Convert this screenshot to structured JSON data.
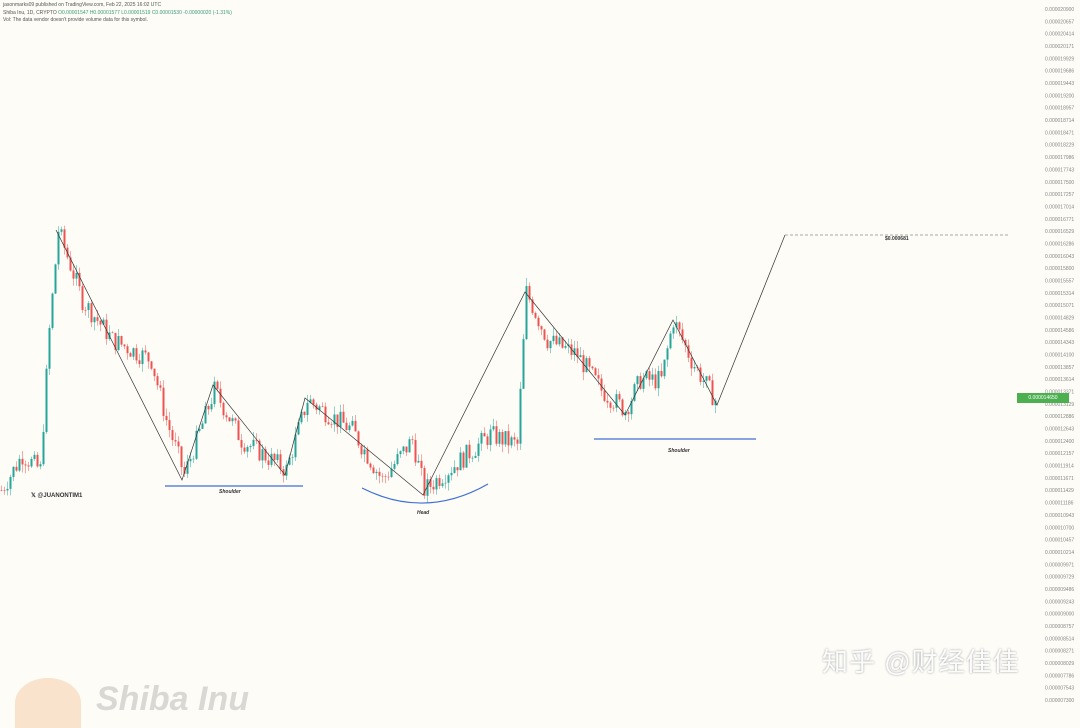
{
  "header": {
    "publisher": "jasonmarks09 published on TradingView.com, Feb 22, 2025 16:02 UTC",
    "symbol": "Shiba Inu, 1D, CRYPTO",
    "ohlc": "O0.00001547 H0.00001577 L0.00001519 C0.00001530 -0.00000020 (-1.31%)",
    "volume_note": "Vol: The data vendor doesn't provide volume data for this symbol."
  },
  "author_tag": "@JUANONTIM1",
  "current_price_label": "0.000014650",
  "target_label": "$0.000681",
  "annotations": {
    "left_shoulder": "Shoulder",
    "head": "Head",
    "right_shoulder": "Shoulder"
  },
  "watermark": {
    "zhihu": "知乎 @财经佳佳",
    "brand": "Shiba Inu"
  },
  "colors": {
    "up": "#26a69a",
    "down": "#ef5350",
    "neckline": "#3f6fd8",
    "price_tag": "#4caf50"
  },
  "chart_data": {
    "type": "candlestick",
    "title": "",
    "xlabel": "",
    "ylabel": "",
    "ylim": [
      7.3e-06,
      2.09e-05
    ],
    "grid": false,
    "trend_path": [
      [
        0,
        1.143e-05
      ],
      [
        7,
        1.212e-05
      ],
      [
        13,
        1.183e-05
      ],
      [
        16,
        1.458e-05
      ],
      [
        19,
        1.655e-05
      ],
      [
        27,
        1.517e-05
      ],
      [
        37,
        1.439e-05
      ],
      [
        50,
        1.399e-05
      ],
      [
        55,
        1.281e-05
      ],
      [
        61,
        1.173e-05
      ],
      [
        71,
        1.34e-05
      ],
      [
        80,
        1.242e-05
      ],
      [
        95,
        1.183e-05
      ],
      [
        102,
        1.321e-05
      ],
      [
        117,
        1.261e-05
      ],
      [
        127,
        1.163e-05
      ],
      [
        137,
        1.242e-05
      ],
      [
        141,
        1.143e-05
      ],
      [
        147,
        1.173e-05
      ],
      [
        153,
        1.202e-05
      ],
      [
        163,
        1.252e-05
      ],
      [
        172,
        1.232e-05
      ],
      [
        175,
        1.533e-05
      ],
      [
        182,
        1.439e-05
      ],
      [
        192,
        1.409e-05
      ],
      [
        200,
        1.34e-05
      ],
      [
        208,
        1.301e-05
      ],
      [
        213,
        1.36e-05
      ],
      [
        220,
        1.36e-05
      ],
      [
        224,
        1.478e-05
      ],
      [
        230,
        1.399e-05
      ],
      [
        237,
        1.33e-05
      ],
      [
        239,
        1.311e-05
      ]
    ],
    "target_price": 1.645e-05
  }
}
